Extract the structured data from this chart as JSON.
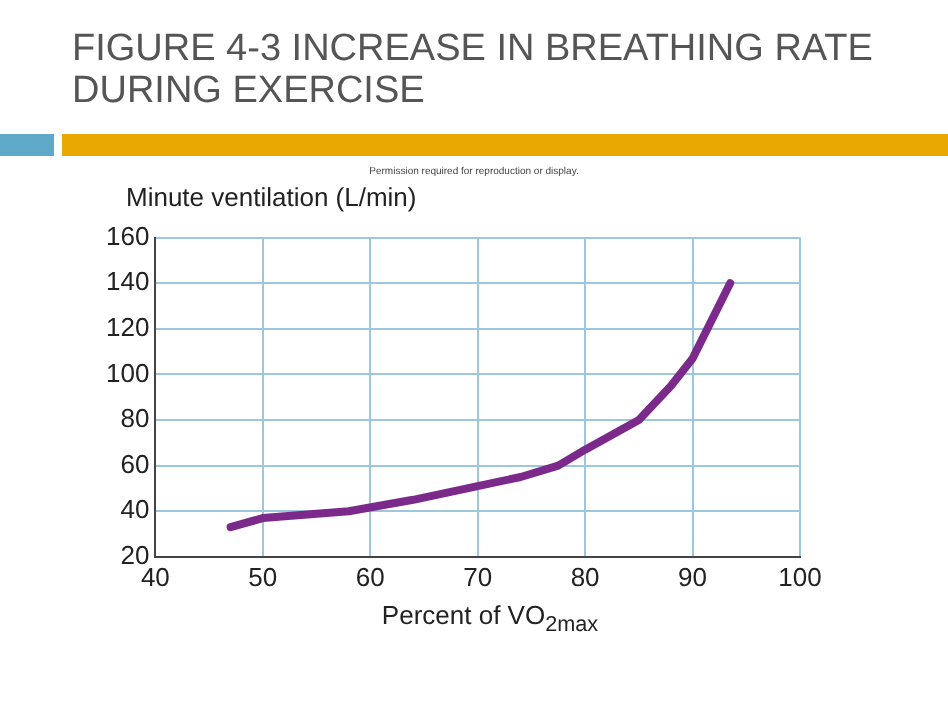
{
  "chart_data": {
    "type": "line",
    "title": "FIGURE 4-3 INCREASE IN BREATHING RATE DURING EXERCISE",
    "xlabel": "Percent of VO$_{2max}$",
    "ylabel": "Minute ventilation (L/min)",
    "annotations": [
      "Permission required for reproduction or display."
    ],
    "x": [
      47,
      50,
      58,
      64,
      70,
      74,
      77.5,
      80,
      85,
      88,
      90,
      93.5
    ],
    "series": [
      {
        "color": "#7b2a8c",
        "values": [
          33,
          37,
          40,
          45,
          51,
          55,
          60,
          67,
          80,
          95,
          107,
          140
        ]
      }
    ],
    "xlim": [
      40,
      100
    ],
    "xticks": [
      40,
      50,
      60,
      70,
      80,
      90,
      100
    ],
    "ylim": [
      20,
      160
    ],
    "yticks": [
      20,
      40,
      60,
      80,
      100,
      120,
      140,
      160
    ],
    "grid": true,
    "legend": false,
    "marker": "none",
    "line_style": "solid"
  }
}
